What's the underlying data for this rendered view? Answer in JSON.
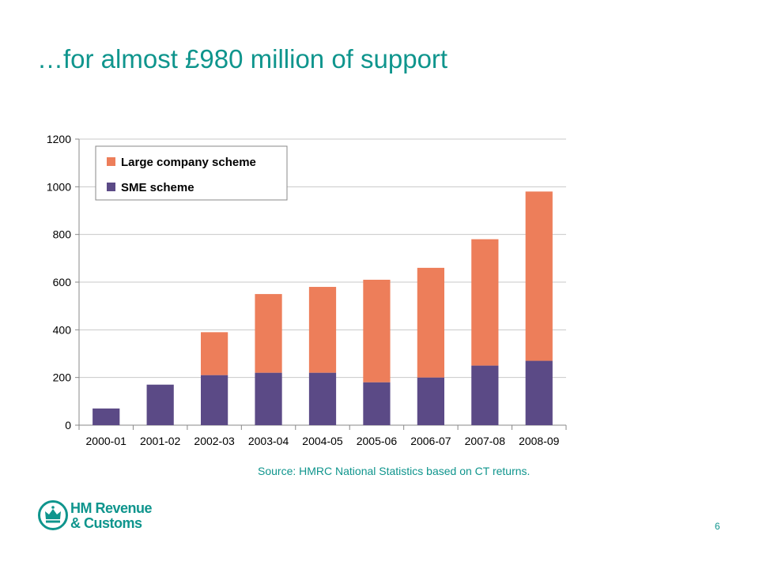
{
  "slide": {
    "title": "…for almost £980 million of support",
    "source": "Source: HMRC National Statistics based on CT returns.",
    "page_number": "6",
    "logo": {
      "line1": "HM Revenue",
      "line2": "& Customs",
      "icon": "crown-icon"
    }
  },
  "colors": {
    "accent": "#0f958d",
    "sme": "#5b4a86",
    "large": "#ed7e5a"
  },
  "chart_data": {
    "type": "bar",
    "stacked": true,
    "categories": [
      "2000-01",
      "2001-02",
      "2002-03",
      "2003-04",
      "2004-05",
      "2005-06",
      "2006-07",
      "2007-08",
      "2008-09"
    ],
    "series": [
      {
        "name": "SME scheme",
        "color": "#5b4a86",
        "values": [
          70,
          170,
          210,
          220,
          220,
          180,
          200,
          250,
          270
        ]
      },
      {
        "name": "Large company scheme",
        "color": "#ed7e5a",
        "values": [
          0,
          0,
          180,
          330,
          360,
          430,
          460,
          530,
          710
        ]
      }
    ],
    "legend_order": [
      "Large company scheme",
      "SME scheme"
    ],
    "ylim": [
      0,
      1200
    ],
    "yticks": [
      0,
      200,
      400,
      600,
      800,
      1000,
      1200
    ],
    "grid": true,
    "legend_position": "top-left"
  }
}
